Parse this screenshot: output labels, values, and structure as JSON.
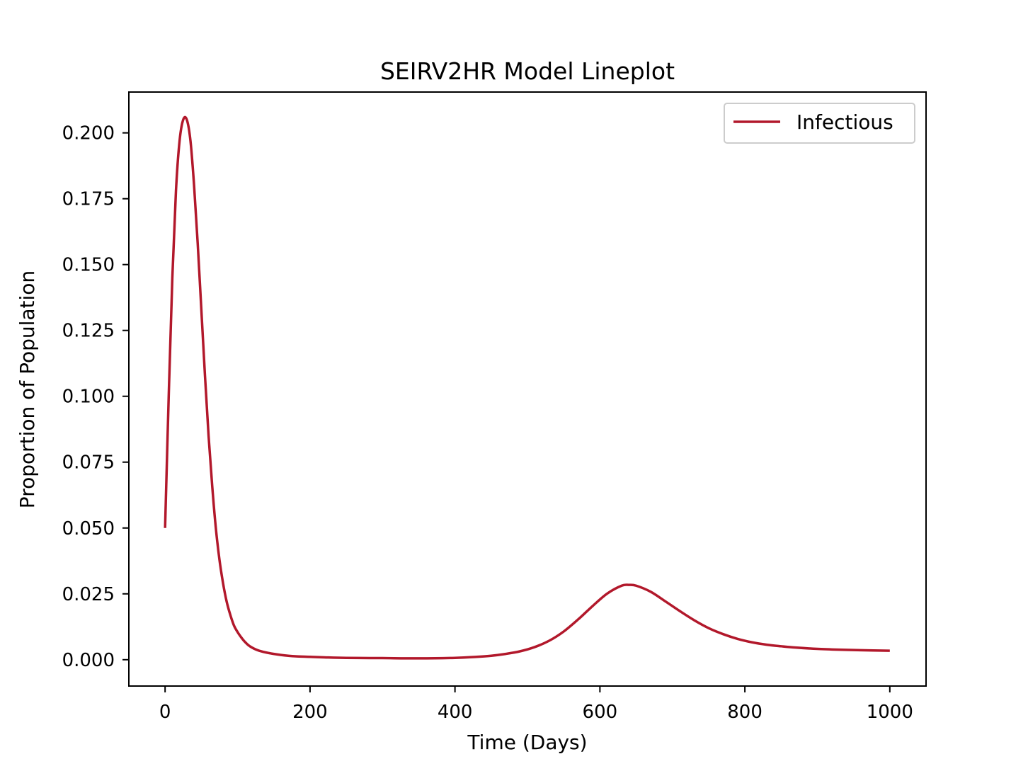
{
  "chart_data": {
    "type": "line",
    "title": "SEIRV2HR Model Lineplot",
    "xlabel": "Time (Days)",
    "ylabel": "Proportion of Population",
    "xlim": [
      -50,
      1050
    ],
    "ylim": [
      -0.01,
      0.2155
    ],
    "x_ticks": [
      0,
      200,
      400,
      600,
      800,
      1000
    ],
    "x_tick_labels": [
      "0",
      "200",
      "400",
      "600",
      "800",
      "1000"
    ],
    "y_ticks": [
      0.0,
      0.025,
      0.05,
      0.075,
      0.1,
      0.125,
      0.15,
      0.175,
      0.2
    ],
    "y_tick_labels": [
      "0.000",
      "0.025",
      "0.050",
      "0.075",
      "0.100",
      "0.125",
      "0.150",
      "0.175",
      "0.200"
    ],
    "grid": false,
    "legend_position": "top-right",
    "series": [
      {
        "name": "Infectious",
        "color": "#b2182b",
        "x": [
          0,
          5,
          10,
          15,
          20,
          25,
          30,
          35,
          40,
          45,
          50,
          55,
          60,
          65,
          70,
          75,
          80,
          85,
          90,
          95,
          100,
          105,
          110,
          115,
          120,
          125,
          130,
          140,
          150,
          160,
          170,
          180,
          200,
          220,
          250,
          300,
          350,
          400,
          430,
          450,
          470,
          490,
          510,
          530,
          550,
          570,
          590,
          610,
          630,
          640,
          650,
          670,
          690,
          710,
          730,
          750,
          770,
          790,
          810,
          830,
          850,
          870,
          900,
          930,
          960,
          1000
        ],
        "y": [
          0.05,
          0.1,
          0.145,
          0.178,
          0.197,
          0.205,
          0.205,
          0.197,
          0.18,
          0.158,
          0.133,
          0.108,
          0.085,
          0.066,
          0.05,
          0.038,
          0.029,
          0.022,
          0.017,
          0.013,
          0.0105,
          0.0085,
          0.0068,
          0.0055,
          0.0046,
          0.0039,
          0.0034,
          0.0027,
          0.0022,
          0.0018,
          0.0015,
          0.0013,
          0.0011,
          0.0009,
          0.0007,
          0.0006,
          0.0005,
          0.0007,
          0.0011,
          0.0015,
          0.0022,
          0.0032,
          0.0048,
          0.0072,
          0.0107,
          0.0153,
          0.0204,
          0.0251,
          0.0281,
          0.0284,
          0.0281,
          0.0258,
          0.0222,
          0.0185,
          0.015,
          0.012,
          0.0097,
          0.0079,
          0.0066,
          0.0057,
          0.0051,
          0.0046,
          0.0041,
          0.0038,
          0.0036,
          0.0034
        ]
      }
    ]
  }
}
